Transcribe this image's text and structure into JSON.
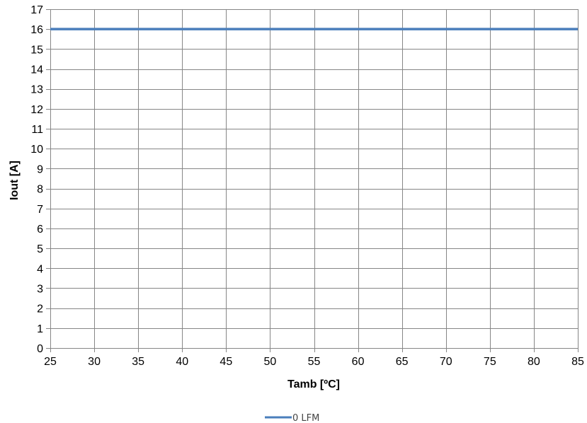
{
  "chart_data": {
    "type": "line",
    "xlabel": "Tamb [ºC]",
    "ylabel": "Iout [A]",
    "xlim": [
      25,
      85
    ],
    "ylim": [
      0,
      17
    ],
    "x_ticks": [
      25,
      30,
      35,
      40,
      45,
      50,
      55,
      60,
      65,
      70,
      75,
      80,
      85
    ],
    "y_ticks": [
      0,
      1,
      2,
      3,
      4,
      5,
      6,
      7,
      8,
      9,
      10,
      11,
      12,
      13,
      14,
      15,
      16,
      17
    ],
    "grid": true,
    "legend_position": "bottom",
    "series": [
      {
        "name": "0 LFM",
        "color": "#4a7ebb",
        "x": [
          25,
          85
        ],
        "y": [
          16,
          16
        ]
      }
    ]
  }
}
